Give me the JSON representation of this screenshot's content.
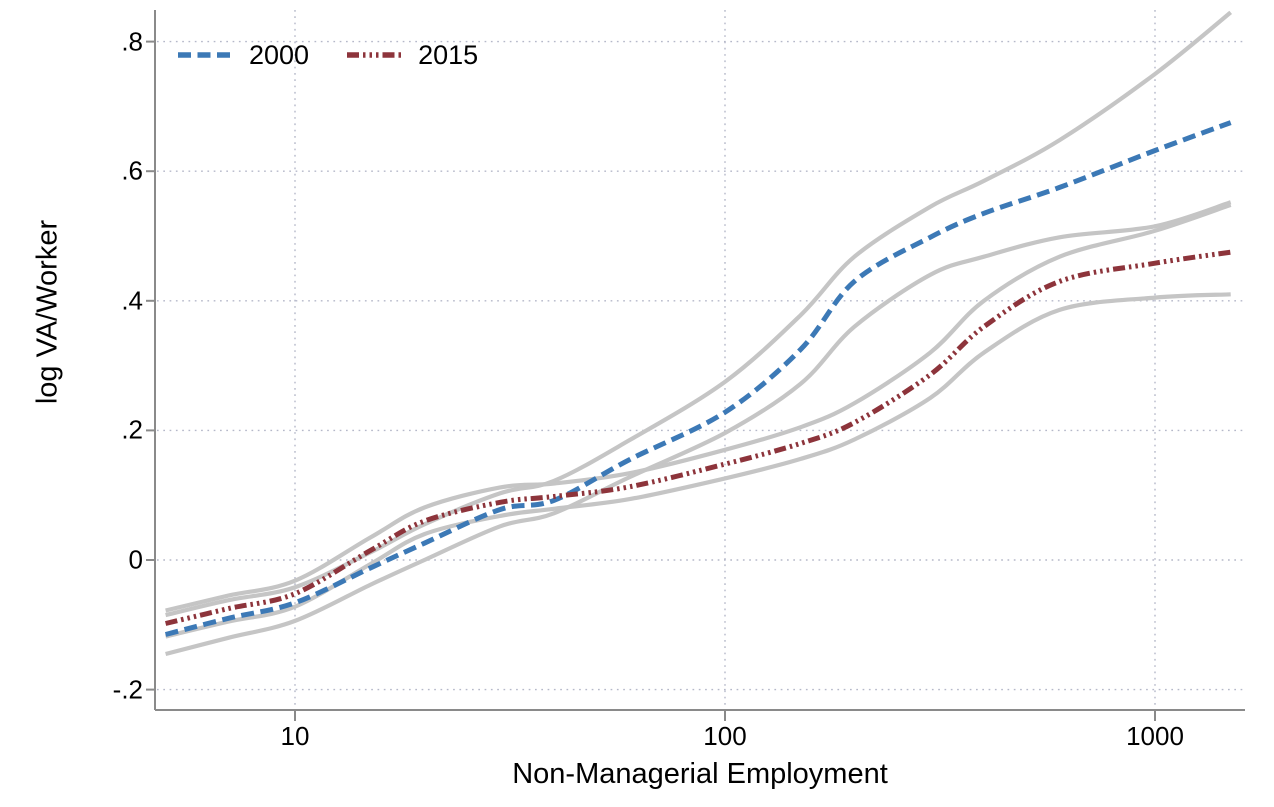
{
  "figure": {
    "background": "#ffffff",
    "colors": {
      "series_2000": "#3c79b6",
      "series_2015": "#8d343b",
      "ci_band_line": "#c5c5c5",
      "gridline": "#b5b8c9",
      "axis_line": "#8a8a8a",
      "text": "#000000"
    },
    "legend": {
      "position": "top-left-inside",
      "items": [
        {
          "label": "2000",
          "color": "#3c79b6",
          "pattern": "dashed"
        },
        {
          "label": "2015",
          "color": "#8d343b",
          "pattern": "dash-dot-dot-dot"
        }
      ]
    },
    "axes": {
      "y": {
        "title": "log VA/Worker",
        "ticks": [
          {
            "value": 0.8,
            "label": ".8"
          },
          {
            "value": 0.6,
            "label": ".6"
          },
          {
            "value": 0.4,
            "label": ".4"
          },
          {
            "value": 0.2,
            "label": ".2"
          },
          {
            "value": 0,
            "label": "0"
          },
          {
            "value": -0.2,
            "label": "-.2"
          }
        ]
      },
      "x": {
        "title": "Non-Managerial Employment",
        "scale": "log",
        "ticks": [
          {
            "value": 10,
            "label": "10"
          },
          {
            "value": 100,
            "label": "100"
          },
          {
            "value": 1000,
            "label": "1000"
          }
        ]
      }
    }
  },
  "chart_data": {
    "type": "line",
    "title": "",
    "xlabel": "Non-Managerial Employment",
    "ylabel": "log VA/Worker",
    "x_scale": "log",
    "xlim": [
      4.7,
      1620
    ],
    "ylim": [
      -0.23,
      0.85
    ],
    "x_ticks": [
      10,
      100,
      1000
    ],
    "y_ticks": [
      -0.2,
      0,
      0.2,
      0.4,
      0.6,
      0.8
    ],
    "grid": "dotted",
    "legend_position": "top-left",
    "x": [
      5,
      7,
      10,
      15,
      20,
      30,
      40,
      60,
      100,
      150,
      200,
      300,
      400,
      600,
      1000,
      1500
    ],
    "series": [
      {
        "name": "2000",
        "role": "fit",
        "color": "#3c79b6",
        "line": "dashed",
        "values": [
          -0.115,
          -0.09,
          -0.066,
          -0.012,
          0.026,
          0.078,
          0.092,
          0.155,
          0.228,
          0.325,
          0.43,
          0.498,
          0.535,
          0.575,
          0.632,
          0.675
        ]
      },
      {
        "name": "2015",
        "role": "fit",
        "color": "#8d343b",
        "line": "dash-dot-dot-dot",
        "values": [
          -0.098,
          -0.075,
          -0.052,
          0.015,
          0.06,
          0.089,
          0.098,
          0.113,
          0.148,
          0.18,
          0.212,
          0.286,
          0.36,
          0.43,
          0.458,
          0.475
        ]
      },
      {
        "name": "2000 CI upper",
        "role": "ci",
        "color": "#c5c5c5",
        "line": "solid",
        "values": [
          -0.085,
          -0.062,
          -0.042,
          0.012,
          0.055,
          0.103,
          0.122,
          0.185,
          0.275,
          0.378,
          0.468,
          0.545,
          0.585,
          0.648,
          0.75,
          0.845
        ]
      },
      {
        "name": "2000 CI lower",
        "role": "ci",
        "color": "#c5c5c5",
        "line": "solid",
        "values": [
          -0.145,
          -0.12,
          -0.094,
          -0.038,
          0.0,
          0.052,
          0.072,
          0.128,
          0.196,
          0.272,
          0.36,
          0.44,
          0.468,
          0.498,
          0.515,
          0.552
        ]
      },
      {
        "name": "2015 CI upper",
        "role": "ci",
        "color": "#c5c5c5",
        "line": "solid",
        "values": [
          -0.078,
          -0.055,
          -0.032,
          0.035,
          0.081,
          0.112,
          0.118,
          0.134,
          0.17,
          0.205,
          0.242,
          0.32,
          0.4,
          0.468,
          0.508,
          0.548
        ]
      },
      {
        "name": "2015 CI lower",
        "role": "ci",
        "color": "#c5c5c5",
        "line": "solid",
        "values": [
          -0.118,
          -0.095,
          -0.072,
          -0.006,
          0.04,
          0.068,
          0.079,
          0.094,
          0.126,
          0.156,
          0.186,
          0.25,
          0.32,
          0.386,
          0.405,
          0.41
        ]
      }
    ]
  }
}
